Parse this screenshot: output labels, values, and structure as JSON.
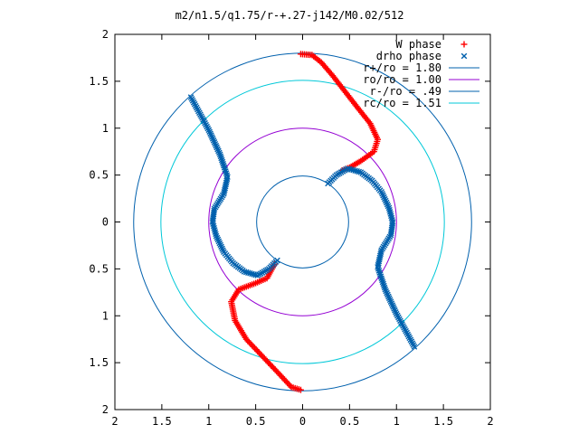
{
  "chart_data": {
    "type": "scatter",
    "title": "m2/n1.5/q1.75/r-+.27-j142/M0.02/512",
    "xlabel": "",
    "ylabel": "",
    "xlim": [
      -2,
      2
    ],
    "ylim": [
      -2,
      2
    ],
    "x_ticks": [
      -2,
      -1.5,
      -1,
      -0.5,
      0,
      0.5,
      1,
      1.5,
      2
    ],
    "y_ticks": [
      -2,
      -1.5,
      -1,
      -0.5,
      0,
      0.5,
      1,
      1.5,
      2
    ],
    "x_tick_labels": [
      "2",
      "1.5",
      "1",
      "0.5",
      "0",
      "0.5",
      "1",
      "1.5",
      "2"
    ],
    "y_tick_labels": [
      "2",
      "1.5",
      "1",
      "0.5",
      "0",
      "0.5",
      "1",
      "1.5",
      "2"
    ],
    "grid": false,
    "legend_position": "top-right",
    "series": [
      {
        "name": "W phase",
        "kind": "points",
        "marker": "plus",
        "color": "#ff0000",
        "branches": [
          [
            [
              -0.02,
              1.79
            ],
            [
              0.1,
              1.78
            ],
            [
              0.2,
              1.7
            ],
            [
              0.32,
              1.56
            ],
            [
              0.46,
              1.38
            ],
            [
              0.6,
              1.2
            ],
            [
              0.72,
              1.05
            ],
            [
              0.8,
              0.88
            ],
            [
              0.76,
              0.75
            ],
            [
              0.62,
              0.65
            ],
            [
              0.5,
              0.58
            ],
            [
              0.42,
              0.55
            ]
          ],
          [
            [
              -0.02,
              -1.79
            ],
            [
              -0.12,
              -1.76
            ],
            [
              -0.25,
              -1.62
            ],
            [
              -0.42,
              -1.44
            ],
            [
              -0.6,
              -1.25
            ],
            [
              -0.72,
              -1.05
            ],
            [
              -0.76,
              -0.85
            ],
            [
              -0.68,
              -0.72
            ],
            [
              -0.52,
              -0.66
            ],
            [
              -0.38,
              -0.6
            ],
            [
              -0.3,
              -0.45
            ]
          ]
        ]
      },
      {
        "name": "drho phase",
        "kind": "points",
        "marker": "cross",
        "color": "#0060ad",
        "branches": [
          [
            [
              0.27,
              0.41
            ],
            [
              0.36,
              0.5
            ],
            [
              0.48,
              0.57
            ],
            [
              0.62,
              0.53
            ],
            [
              0.74,
              0.44
            ],
            [
              0.84,
              0.32
            ],
            [
              0.92,
              0.15
            ],
            [
              0.96,
              0.0
            ],
            [
              0.94,
              -0.14
            ],
            [
              0.84,
              -0.3
            ],
            [
              0.8,
              -0.48
            ],
            [
              0.88,
              -0.72
            ],
            [
              1.0,
              -0.98
            ],
            [
              1.12,
              -1.2
            ],
            [
              1.19,
              -1.33
            ]
          ],
          [
            [
              -0.27,
              -0.41
            ],
            [
              -0.36,
              -0.5
            ],
            [
              -0.48,
              -0.57
            ],
            [
              -0.62,
              -0.53
            ],
            [
              -0.74,
              -0.44
            ],
            [
              -0.84,
              -0.32
            ],
            [
              -0.92,
              -0.15
            ],
            [
              -0.96,
              0.0
            ],
            [
              -0.94,
              0.14
            ],
            [
              -0.84,
              0.3
            ],
            [
              -0.8,
              0.48
            ],
            [
              -0.88,
              0.72
            ],
            [
              -1.0,
              0.98
            ],
            [
              -1.12,
              1.2
            ],
            [
              -1.19,
              1.33
            ]
          ]
        ]
      },
      {
        "name": "r+/ro = 1.80",
        "kind": "circle",
        "radius": 1.8,
        "color": "#0060ad"
      },
      {
        "name": "ro/ro = 1.00",
        "kind": "circle",
        "radius": 1.0,
        "color": "#9400d3"
      },
      {
        "name": "r-/ro = .49",
        "kind": "circle",
        "radius": 0.49,
        "color": "#0060ad"
      },
      {
        "name": "rc/ro = 1.51",
        "kind": "circle",
        "radius": 1.51,
        "color": "#00c8d8"
      }
    ]
  }
}
